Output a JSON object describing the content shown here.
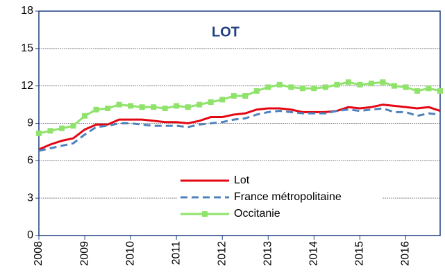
{
  "chart_data": {
    "type": "line",
    "title": "LOT",
    "x": [
      2008,
      2008.25,
      2008.5,
      2008.75,
      2009,
      2009.25,
      2009.5,
      2009.75,
      2010,
      2010.25,
      2010.5,
      2010.75,
      2011,
      2011.25,
      2011.5,
      2011.75,
      2012,
      2012.25,
      2012.5,
      2012.75,
      2013,
      2013.25,
      2013.5,
      2013.75,
      2014,
      2014.25,
      2014.5,
      2014.75,
      2015,
      2015.25,
      2015.5,
      2015.75,
      2016,
      2016.25,
      2016.5,
      2016.75
    ],
    "series": [
      {
        "name": "Lot",
        "color": "#e30613",
        "dash": false,
        "marker": false,
        "values": [
          6.9,
          7.3,
          7.6,
          7.8,
          8.5,
          8.9,
          8.9,
          9.3,
          9.3,
          9.3,
          9.2,
          9.1,
          9.1,
          9.0,
          9.2,
          9.5,
          9.5,
          9.7,
          9.8,
          10.1,
          10.2,
          10.2,
          10.1,
          9.9,
          9.9,
          9.9,
          10.0,
          10.3,
          10.2,
          10.3,
          10.5,
          10.4,
          10.3,
          10.2,
          10.3,
          10.0
        ]
      },
      {
        "name": "France métropolitaine",
        "color": "#4f81bd",
        "dash": true,
        "marker": false,
        "values": [
          6.8,
          7.0,
          7.2,
          7.4,
          8.1,
          8.7,
          8.8,
          9.0,
          9.0,
          8.9,
          8.8,
          8.8,
          8.8,
          8.7,
          8.9,
          9.0,
          9.1,
          9.3,
          9.4,
          9.7,
          9.9,
          10.0,
          9.9,
          9.8,
          9.8,
          9.8,
          10.0,
          10.1,
          10.0,
          10.1,
          10.2,
          9.9,
          9.9,
          9.6,
          9.8,
          9.7
        ]
      },
      {
        "name": "Occitanie",
        "color": "#8fe36b",
        "dash": false,
        "marker": true,
        "values": [
          8.2,
          8.4,
          8.6,
          8.8,
          9.6,
          10.1,
          10.2,
          10.5,
          10.4,
          10.3,
          10.3,
          10.2,
          10.4,
          10.3,
          10.5,
          10.7,
          10.9,
          11.2,
          11.2,
          11.6,
          11.9,
          12.1,
          11.9,
          11.8,
          11.8,
          11.9,
          12.1,
          12.3,
          12.1,
          12.2,
          12.3,
          12.0,
          11.9,
          11.6,
          11.8,
          11.6
        ]
      }
    ],
    "xlim": [
      2008,
      2016.75
    ],
    "xticks": [
      2008,
      2009,
      2010,
      2011,
      2012,
      2013,
      2014,
      2015,
      2016
    ],
    "ylim": [
      0,
      18
    ],
    "yticks": [
      0,
      3,
      6,
      9,
      12,
      15,
      18
    ],
    "grid": true,
    "legend": "bottom-center"
  }
}
